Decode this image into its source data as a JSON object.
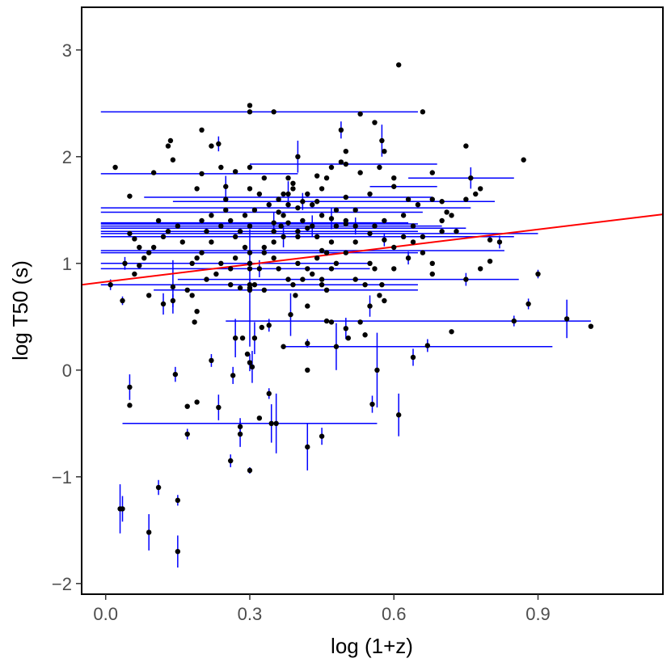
{
  "chart_data": {
    "type": "scatter",
    "xlabel": "log (1+z)",
    "ylabel": "log T50 (s)",
    "xlim": [
      -0.05,
      1.16
    ],
    "ylim": [
      -2.1,
      3.4
    ],
    "x_ticks": [
      0.0,
      0.3,
      0.6,
      0.9
    ],
    "x_tick_labels": [
      "0.0",
      "0.3",
      "0.6",
      "0.9"
    ],
    "y_ticks": [
      -2,
      -1,
      0,
      1,
      2,
      3
    ],
    "y_tick_labels": [
      "−2",
      "−1",
      "0",
      "1",
      "2",
      "3"
    ],
    "grid": false,
    "colors": {
      "points": "#000000",
      "error_bars": "#0000ff",
      "fit_line": "#ff0000",
      "frame": "#000000"
    },
    "fit_line": {
      "x": [
        -0.05,
        1.16
      ],
      "y": [
        0.8,
        1.46
      ]
    },
    "points": [
      {
        "x": 0.03,
        "y": -1.3,
        "yerr": 0.23
      },
      {
        "x": 0.035,
        "y": -1.3,
        "yerr": 0.12
      },
      {
        "x": 0.09,
        "y": -1.52,
        "yerr": 0.17
      },
      {
        "x": 0.11,
        "y": -1.1,
        "yerr": 0.07
      },
      {
        "x": 0.15,
        "y": -1.22,
        "yerr": 0.05
      },
      {
        "x": 0.15,
        "y": -1.7,
        "yerr": 0.15
      },
      {
        "x": 0.05,
        "y": -0.16,
        "yerr": 0.12
      },
      {
        "x": 0.05,
        "y": -0.33
      },
      {
        "x": 0.145,
        "y": -0.04,
        "yerr": 0.07
      },
      {
        "x": 0.17,
        "y": -0.6,
        "yerr": 0.05
      },
      {
        "x": 0.17,
        "y": -0.34
      },
      {
        "x": 0.19,
        "y": -0.3
      },
      {
        "x": 0.22,
        "y": 0.09,
        "yerr": 0.06
      },
      {
        "x": 0.235,
        "y": -0.35,
        "yerr": 0.12
      },
      {
        "x": 0.26,
        "y": -0.85,
        "yerr": 0.06
      },
      {
        "x": 0.265,
        "y": -0.05,
        "yerr": 0.08
      },
      {
        "x": 0.28,
        "y": -0.6,
        "yerr": 0.12
      },
      {
        "x": 0.28,
        "y": -0.53,
        "yerr": 0.08
      },
      {
        "x": 0.3,
        "y": -0.94,
        "yerr": 0.03
      },
      {
        "x": 0.32,
        "y": -0.45
      },
      {
        "x": 0.34,
        "y": -0.22,
        "yerr": 0.05
      },
      {
        "x": 0.345,
        "y": -0.5,
        "xerr": [
          0.31,
          0.22
        ],
        "yerr": 0.18
      },
      {
        "x": 0.355,
        "y": -0.5,
        "yerr": 0.28
      },
      {
        "x": 0.42,
        "y": -0.72,
        "yerr": 0.22
      },
      {
        "x": 0.45,
        "y": -0.62,
        "yerr": 0.08
      },
      {
        "x": 0.555,
        "y": -0.32,
        "yerr": 0.08
      },
      {
        "x": 0.61,
        "y": -0.42,
        "yerr": 0.2
      },
      {
        "x": 0.565,
        "y": 0.0,
        "yerr": 0.35
      },
      {
        "x": 0.48,
        "y": 0.22,
        "yerr": 0.22
      },
      {
        "x": 0.505,
        "y": 0.3
      },
      {
        "x": 0.54,
        "y": 0.33
      },
      {
        "x": 0.64,
        "y": 0.12,
        "yerr": 0.08
      },
      {
        "x": 0.67,
        "y": 0.23,
        "yerr": 0.06
      },
      {
        "x": 0.37,
        "y": 0.22,
        "xerr": [
          0.0,
          0.56
        ]
      },
      {
        "x": 0.42,
        "y": 0.25,
        "yerr": 0.04
      },
      {
        "x": 0.42,
        "y": 0.0
      },
      {
        "x": 0.285,
        "y": 0.3
      },
      {
        "x": 0.295,
        "y": 0.15
      },
      {
        "x": 0.3,
        "y": 0.07,
        "yerr": 0.08
      },
      {
        "x": 0.305,
        "y": 0.03,
        "yerr": 0.15
      },
      {
        "x": 0.31,
        "y": 0.3,
        "yerr": 0.15
      },
      {
        "x": 0.325,
        "y": 0.4
      },
      {
        "x": 0.34,
        "y": 0.42,
        "yerr": 0.06
      },
      {
        "x": 0.385,
        "y": 0.52,
        "yerr": 0.2
      },
      {
        "x": 0.42,
        "y": 0.6
      },
      {
        "x": 0.46,
        "y": 0.46
      },
      {
        "x": 0.47,
        "y": 0.45
      },
      {
        "x": 0.5,
        "y": 0.39,
        "yerr": 0.1
      },
      {
        "x": 0.53,
        "y": 0.45
      },
      {
        "x": 0.55,
        "y": 0.6,
        "yerr": 0.1
      },
      {
        "x": 0.575,
        "y": 0.8
      },
      {
        "x": 0.6,
        "y": 0.95
      },
      {
        "x": 0.63,
        "y": 1.05,
        "yerr": 0.06
      },
      {
        "x": 0.68,
        "y": 0.9
      },
      {
        "x": 0.72,
        "y": 0.36
      },
      {
        "x": 0.75,
        "y": 0.85,
        "yerr": 0.06
      },
      {
        "x": 0.78,
        "y": 0.95
      },
      {
        "x": 0.8,
        "y": 1.02
      },
      {
        "x": 0.85,
        "y": 0.46,
        "xerr": [
          0.6,
          0.16
        ],
        "yerr": 0.05
      },
      {
        "x": 0.9,
        "y": 0.9,
        "yerr": 0.04
      },
      {
        "x": 0.96,
        "y": 0.48,
        "yerr": 0.18
      },
      {
        "x": 1.01,
        "y": 0.41
      },
      {
        "x": 0.88,
        "y": 0.62,
        "yerr": 0.05
      },
      {
        "x": 0.87,
        "y": 1.97
      },
      {
        "x": 0.78,
        "y": 1.7
      },
      {
        "x": 0.77,
        "y": 1.65
      },
      {
        "x": 0.76,
        "y": 1.8,
        "xerr": [
          0.13,
          0.09
        ],
        "yerr": 0.1
      },
      {
        "x": 0.75,
        "y": 2.1
      },
      {
        "x": 0.82,
        "y": 1.2,
        "yerr": 0.06
      },
      {
        "x": 0.8,
        "y": 1.22
      },
      {
        "x": 0.72,
        "y": 1.45
      },
      {
        "x": 0.7,
        "y": 1.58
      },
      {
        "x": 0.68,
        "y": 1.85
      },
      {
        "x": 0.66,
        "y": 2.42
      },
      {
        "x": 0.61,
        "y": 2.86
      },
      {
        "x": 0.58,
        "y": 2.05
      },
      {
        "x": 0.575,
        "y": 2.15,
        "yerr": 0.15
      },
      {
        "x": 0.56,
        "y": 2.32
      },
      {
        "x": 0.53,
        "y": 2.4
      },
      {
        "x": 0.49,
        "y": 2.25,
        "yerr": 0.08
      },
      {
        "x": 0.49,
        "y": 1.95
      },
      {
        "x": 0.47,
        "y": 1.9
      },
      {
        "x": 0.46,
        "y": 1.8
      },
      {
        "x": 0.44,
        "y": 1.82
      },
      {
        "x": 0.4,
        "y": 2.0,
        "yerr": 0.15
      },
      {
        "x": 0.39,
        "y": 1.7
      },
      {
        "x": 0.38,
        "y": 1.55
      },
      {
        "x": 0.365,
        "y": 1.35
      },
      {
        "x": 0.35,
        "y": 1.2
      },
      {
        "x": 0.33,
        "y": 1.1
      },
      {
        "x": 0.3,
        "y": 2.48
      },
      {
        "x": 0.35,
        "y": 2.42
      },
      {
        "x": 0.3,
        "y": 1.9
      },
      {
        "x": 0.27,
        "y": 1.86
      },
      {
        "x": 0.25,
        "y": 1.6
      },
      {
        "x": 0.2,
        "y": 2.25
      },
      {
        "x": 0.19,
        "y": 1.7
      },
      {
        "x": 0.22,
        "y": 2.1
      },
      {
        "x": 0.235,
        "y": 2.12,
        "yerr": 0.07
      },
      {
        "x": 0.24,
        "y": 1.9
      },
      {
        "x": 0.13,
        "y": 2.1
      },
      {
        "x": 0.135,
        "y": 2.15
      },
      {
        "x": 0.14,
        "y": 1.97
      },
      {
        "x": 0.1,
        "y": 1.85
      },
      {
        "x": 0.05,
        "y": 1.63
      },
      {
        "x": 0.02,
        "y": 1.9
      },
      {
        "x": 0.05,
        "y": 1.28
      },
      {
        "x": 0.06,
        "y": 1.23
      },
      {
        "x": 0.07,
        "y": 1.15
      },
      {
        "x": 0.09,
        "y": 1.1
      },
      {
        "x": 0.04,
        "y": 1.0,
        "yerr": 0.06
      },
      {
        "x": 0.01,
        "y": 0.8,
        "yerr": 0.05
      },
      {
        "x": 0.035,
        "y": 0.65,
        "yerr": 0.04
      },
      {
        "x": 0.08,
        "y": 1.05
      },
      {
        "x": 0.09,
        "y": 0.7
      },
      {
        "x": 0.12,
        "y": 0.62,
        "yerr": 0.1
      },
      {
        "x": 0.14,
        "y": 0.65,
        "yerr": 0.06
      },
      {
        "x": 0.17,
        "y": 0.75
      },
      {
        "x": 0.18,
        "y": 0.7
      },
      {
        "x": 0.19,
        "y": 0.55
      },
      {
        "x": 0.185,
        "y": 0.45
      },
      {
        "x": 0.21,
        "y": 0.85
      },
      {
        "x": 0.23,
        "y": 0.9
      },
      {
        "x": 0.26,
        "y": 0.8
      },
      {
        "x": 0.28,
        "y": 0.77
      },
      {
        "x": 0.3,
        "y": 1.0
      },
      {
        "x": 0.31,
        "y": 0.8
      },
      {
        "x": 0.33,
        "y": 0.75
      },
      {
        "x": 0.36,
        "y": 0.95
      },
      {
        "x": 0.38,
        "y": 0.85
      },
      {
        "x": 0.39,
        "y": 0.8
      },
      {
        "x": 0.395,
        "y": 0.7
      },
      {
        "x": 0.41,
        "y": 0.85
      },
      {
        "x": 0.43,
        "y": 0.9
      },
      {
        "x": 0.45,
        "y": 0.8
      },
      {
        "x": 0.46,
        "y": 0.75
      },
      {
        "x": 0.47,
        "y": 0.95
      },
      {
        "x": 0.48,
        "y": 1.0
      },
      {
        "x": 0.5,
        "y": 1.1
      },
      {
        "x": 0.52,
        "y": 0.85
      },
      {
        "x": 0.54,
        "y": 0.8
      },
      {
        "x": 0.55,
        "y": 1.0
      },
      {
        "x": 0.56,
        "y": 0.95
      },
      {
        "x": 0.57,
        "y": 0.7
      },
      {
        "x": 0.58,
        "y": 0.65
      },
      {
        "x": 0.6,
        "y": 1.15
      },
      {
        "x": 0.62,
        "y": 1.25
      },
      {
        "x": 0.64,
        "y": 1.2
      },
      {
        "x": 0.66,
        "y": 1.1
      },
      {
        "x": 0.68,
        "y": 1.0
      },
      {
        "x": 0.7,
        "y": 1.3
      },
      {
        "x": 0.71,
        "y": 1.48
      },
      {
        "x": 0.63,
        "y": 1.6
      },
      {
        "x": 0.65,
        "y": 1.55
      },
      {
        "x": 0.6,
        "y": 1.8
      },
      {
        "x": 0.55,
        "y": 1.65
      },
      {
        "x": 0.52,
        "y": 1.5
      },
      {
        "x": 0.5,
        "y": 1.4
      },
      {
        "x": 0.48,
        "y": 1.35
      },
      {
        "x": 0.45,
        "y": 1.45
      },
      {
        "x": 0.43,
        "y": 1.55
      },
      {
        "x": 0.41,
        "y": 1.4
      },
      {
        "x": 0.4,
        "y": 1.3
      },
      {
        "x": 0.37,
        "y": 1.45
      },
      {
        "x": 0.36,
        "y": 1.6
      },
      {
        "x": 0.34,
        "y": 1.55
      },
      {
        "x": 0.32,
        "y": 1.65
      },
      {
        "x": 0.31,
        "y": 1.5
      },
      {
        "x": 0.29,
        "y": 1.45
      },
      {
        "x": 0.28,
        "y": 1.3
      },
      {
        "x": 0.27,
        "y": 1.25
      },
      {
        "x": 0.26,
        "y": 1.4
      },
      {
        "x": 0.25,
        "y": 1.5
      },
      {
        "x": 0.24,
        "y": 1.35
      },
      {
        "x": 0.22,
        "y": 1.2
      },
      {
        "x": 0.21,
        "y": 1.3
      },
      {
        "x": 0.2,
        "y": 1.1
      },
      {
        "x": 0.19,
        "y": 1.05
      },
      {
        "x": 0.18,
        "y": 1.0
      },
      {
        "x": 0.16,
        "y": 1.2
      },
      {
        "x": 0.15,
        "y": 1.35
      },
      {
        "x": 0.13,
        "y": 1.3
      },
      {
        "x": 0.12,
        "y": 1.25
      },
      {
        "x": 0.11,
        "y": 1.4
      },
      {
        "x": 0.1,
        "y": 1.15
      },
      {
        "x": 0.45,
        "y": 1.7
      },
      {
        "x": 0.42,
        "y": 1.65
      },
      {
        "x": 0.39,
        "y": 1.75
      },
      {
        "x": 0.38,
        "y": 1.8
      },
      {
        "x": 0.37,
        "y": 1.65
      },
      {
        "x": 0.3,
        "y": 1.7
      },
      {
        "x": 0.33,
        "y": 1.8
      },
      {
        "x": 0.44,
        "y": 1.25
      },
      {
        "x": 0.47,
        "y": 1.2
      },
      {
        "x": 0.52,
        "y": 1.2
      },
      {
        "x": 0.56,
        "y": 1.35
      },
      {
        "x": 0.58,
        "y": 1.4
      },
      {
        "x": 0.62,
        "y": 1.45
      },
      {
        "x": 0.64,
        "y": 1.35
      },
      {
        "x": 0.66,
        "y": 1.25
      },
      {
        "x": 0.57,
        "y": 1.9
      },
      {
        "x": 0.53,
        "y": 1.85
      },
      {
        "x": 0.5,
        "y": 2.05
      },
      {
        "x": 0.48,
        "y": 1.5
      },
      {
        "x": 0.46,
        "y": 1.1
      },
      {
        "x": 0.44,
        "y": 1.05
      },
      {
        "x": 0.42,
        "y": 0.95
      },
      {
        "x": 0.4,
        "y": 1.0
      },
      {
        "x": 0.35,
        "y": 1.05
      },
      {
        "x": 0.33,
        "y": 1.15
      },
      {
        "x": 0.29,
        "y": 1.15
      },
      {
        "x": 0.27,
        "y": 1.05
      },
      {
        "x": 0.26,
        "y": 0.95
      },
      {
        "x": 0.24,
        "y": 1.0
      },
      {
        "x": 0.22,
        "y": 1.45
      },
      {
        "x": 0.2,
        "y": 1.4
      },
      {
        "x": 0.07,
        "y": 0.98
      },
      {
        "x": 0.06,
        "y": 0.9
      },
      {
        "x": 0.68,
        "y": 1.6
      },
      {
        "x": 0.7,
        "y": 1.4
      },
      {
        "x": 0.73,
        "y": 1.3
      },
      {
        "x": 0.75,
        "y": 1.6
      },
      {
        "x": 0.3,
        "y": 1.35,
        "xerr": [
          0.31,
          0.4
        ]
      },
      {
        "x": 0.35,
        "y": 1.3,
        "xerr": [
          0.36,
          0.3
        ]
      },
      {
        "x": 0.4,
        "y": 1.25,
        "xerr": [
          0.41,
          0.45
        ]
      },
      {
        "x": 0.45,
        "y": 1.12,
        "xerr": [
          0.46,
          0.38
        ]
      },
      {
        "x": 0.5,
        "y": 1.37,
        "xerr": [
          0.51,
          0.15
        ]
      },
      {
        "x": 0.55,
        "y": 1.28,
        "xerr": [
          0.56,
          0.35
        ]
      },
      {
        "x": 0.38,
        "y": 1.38,
        "xerr": [
          0.39,
          0.25
        ]
      },
      {
        "x": 0.42,
        "y": 1.33,
        "xerr": [
          0.43,
          0.33
        ]
      },
      {
        "x": 0.36,
        "y": 1.48,
        "xerr": [
          0.37,
          0.3
        ]
      },
      {
        "x": 0.4,
        "y": 1.52,
        "xerr": [
          0.41,
          0.36
        ]
      },
      {
        "x": 0.44,
        "y": 1.58,
        "xerr": [
          0.3,
          0.37
        ]
      },
      {
        "x": 0.5,
        "y": 1.62,
        "xerr": [
          0.42,
          0.18
        ]
      },
      {
        "x": 0.2,
        "y": 1.84,
        "xerr": [
          0.21,
          0.2
        ]
      },
      {
        "x": 0.5,
        "y": 1.93,
        "xerr": [
          0.2,
          0.19
        ]
      },
      {
        "x": 0.3,
        "y": 2.42,
        "xerr": [
          0.31,
          0.35
        ]
      },
      {
        "x": 0.3,
        "y": 1.1,
        "xerr": [
          0.31,
          0.35
        ]
      },
      {
        "x": 0.3,
        "y": 1.0,
        "xerr": [
          0.31,
          0.25
        ]
      },
      {
        "x": 0.3,
        "y": 0.95,
        "xerr": [
          0.31,
          0.25
        ]
      },
      {
        "x": 0.3,
        "y": 0.8,
        "xerr": [
          0.31,
          0.35
        ]
      },
      {
        "x": 0.45,
        "y": 0.85,
        "xerr": [
          0.3,
          0.41
        ]
      },
      {
        "x": 0.3,
        "y": 0.75,
        "xerr": [
          0.2,
          0.35
        ]
      },
      {
        "x": 0.6,
        "y": 1.72,
        "xerr": [
          0.05,
          0.09
        ]
      },
      {
        "x": 0.3,
        "y": 0.77,
        "yerr": 0.55
      },
      {
        "x": 0.27,
        "y": 0.3,
        "yerr": 0.18
      },
      {
        "x": 0.32,
        "y": 0.95,
        "yerr": 0.08
      },
      {
        "x": 0.35,
        "y": 1.38,
        "yerr": 0.1
      },
      {
        "x": 0.37,
        "y": 1.25,
        "yerr": 0.1
      },
      {
        "x": 0.38,
        "y": 1.65,
        "yerr": 0.12
      },
      {
        "x": 0.41,
        "y": 1.58,
        "yerr": 0.08
      },
      {
        "x": 0.43,
        "y": 1.35,
        "yerr": 0.1
      },
      {
        "x": 0.47,
        "y": 1.42,
        "yerr": 0.1
      },
      {
        "x": 0.52,
        "y": 1.35,
        "yerr": 0.08
      },
      {
        "x": 0.58,
        "y": 1.22,
        "yerr": 0.06
      },
      {
        "x": 0.14,
        "y": 0.78,
        "yerr": 0.25
      },
      {
        "x": 0.25,
        "y": 1.72,
        "yerr": 0.1
      }
    ]
  }
}
